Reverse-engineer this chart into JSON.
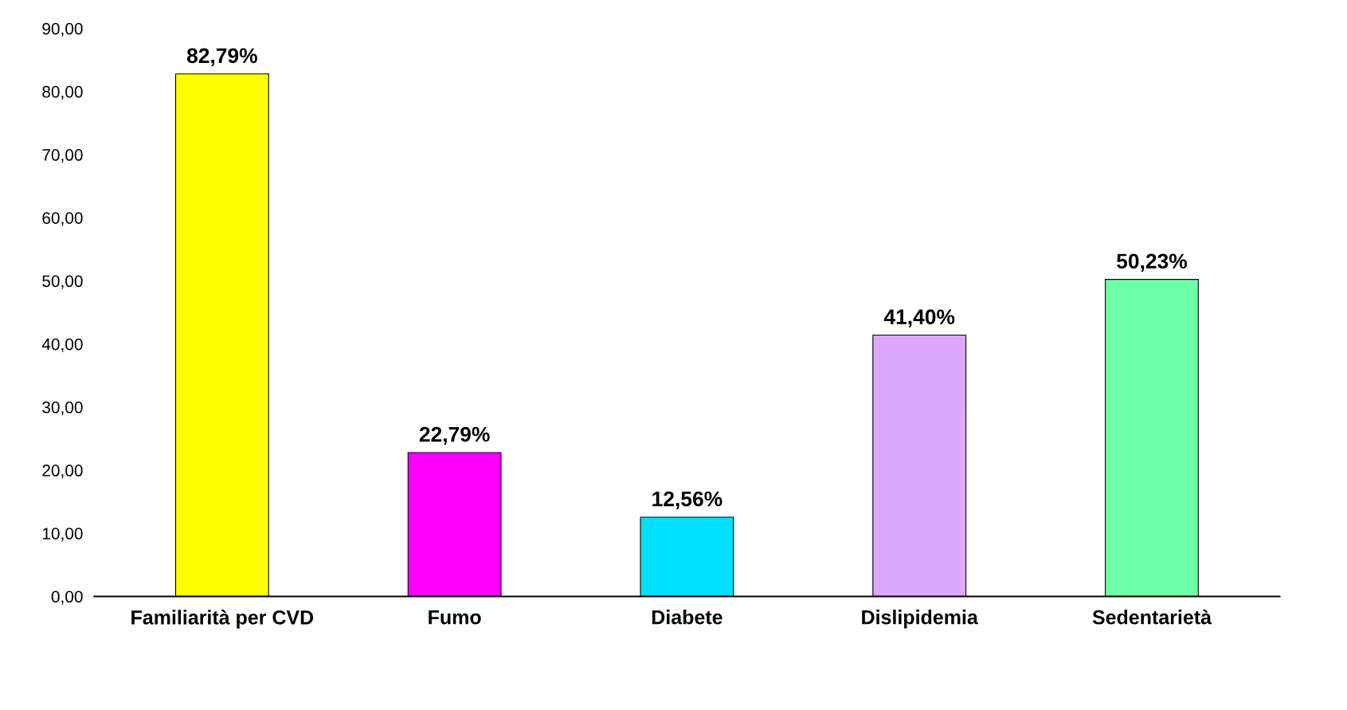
{
  "chart_data": {
    "type": "bar",
    "categories": [
      "Familiarità per CVD",
      "Fumo",
      "Diabete",
      "Dislipidemia",
      "Sedentarietà"
    ],
    "values": [
      82.79,
      22.79,
      12.56,
      41.4,
      50.23
    ],
    "value_labels": [
      "82,79%",
      "22,79%",
      "12,56%",
      "41,40%",
      "50,23%"
    ],
    "colors": [
      "#ffff00",
      "#ff00ff",
      "#00e0ff",
      "#dda6ff",
      "#6fffa8"
    ],
    "ylim": [
      0,
      90
    ],
    "yticks": [
      {
        "value": 0,
        "label": "0,00"
      },
      {
        "value": 10,
        "label": "10,00"
      },
      {
        "value": 20,
        "label": "20,00"
      },
      {
        "value": 30,
        "label": "30,00"
      },
      {
        "value": 40,
        "label": "40,00"
      },
      {
        "value": 50,
        "label": "50,00"
      },
      {
        "value": 60,
        "label": "60,00"
      },
      {
        "value": 70,
        "label": "70,00"
      },
      {
        "value": 80,
        "label": "80,00"
      },
      {
        "value": 90,
        "label": "90,00"
      }
    ],
    "grid": false,
    "legend": false
  }
}
